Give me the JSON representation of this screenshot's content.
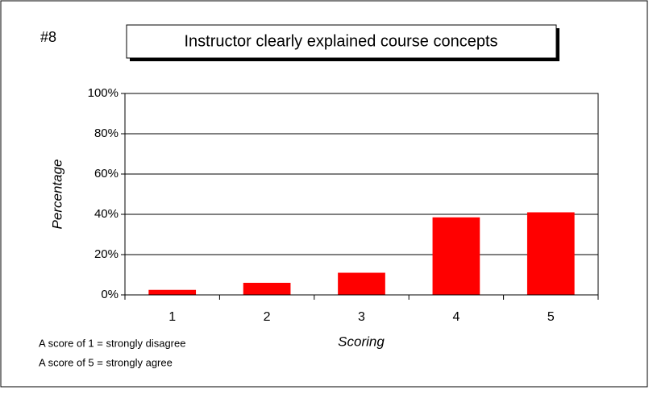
{
  "chart_data": {
    "type": "bar",
    "chart_number": "#8",
    "title": "Instructor clearly explained course concepts",
    "x_label": "Scoring",
    "y_label": "Percentage",
    "notes": [
      "A score of 1 = strongly disagree",
      "A score of 5 = strongly agree"
    ],
    "categories": [
      "1",
      "2",
      "3",
      "4",
      "5"
    ],
    "values": [
      2.5,
      6,
      11,
      38.5,
      41
    ],
    "color": "#ff0000",
    "ylim": [
      0,
      100
    ],
    "yticks": [
      {
        "value": 0,
        "label": "0%"
      },
      {
        "value": 20,
        "label": "20%"
      },
      {
        "value": 40,
        "label": "40%"
      },
      {
        "value": 60,
        "label": "60%"
      },
      {
        "value": 80,
        "label": "80%"
      },
      {
        "value": 100,
        "label": "100%"
      }
    ],
    "grid": true
  }
}
